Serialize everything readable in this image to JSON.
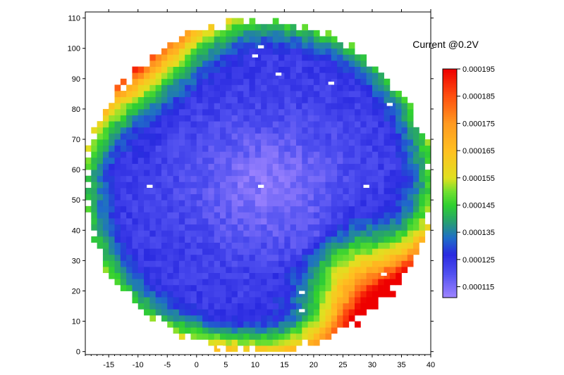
{
  "chart_data": {
    "type": "heatmap",
    "title": "Current @0.2V",
    "xlabel": "",
    "ylabel": "",
    "xlim": [
      -19,
      40
    ],
    "ylim": [
      -1,
      112
    ],
    "x_ticks": [
      -15,
      -10,
      -5,
      0,
      5,
      10,
      15,
      20,
      25,
      30,
      35,
      40
    ],
    "y_ticks": [
      0,
      10,
      20,
      30,
      40,
      50,
      60,
      70,
      80,
      90,
      100,
      110
    ],
    "x_tick_labels": [
      "-15",
      "-10",
      "-5",
      "0",
      "5",
      "10",
      "15",
      "20",
      "25",
      "30",
      "35",
      "40"
    ],
    "y_tick_labels": [
      "0",
      "10",
      "20",
      "30",
      "40",
      "50",
      "60",
      "70",
      "80",
      "90",
      "100",
      "110"
    ],
    "wafer": {
      "center_x": 10.5,
      "center_y": 54.5,
      "radius_x": 29.5,
      "radius_y": 54.5
    },
    "pixel_size": {
      "dx": 1,
      "dy": 2
    },
    "colorscale": {
      "min": 0.000111,
      "max": 0.000195,
      "tick_values": [
        0.000115,
        0.000125,
        0.000135,
        0.000145,
        0.000155,
        0.000165,
        0.000175,
        0.000185,
        0.000195
      ],
      "tick_labels": [
        "0.000115",
        "0.000125",
        "0.000135",
        "0.000145",
        "0.000155",
        "0.000165",
        "0.000175",
        "0.000185",
        "0.000195"
      ],
      "stops": [
        [
          0.000111,
          "#9f85ff"
        ],
        [
          0.00012,
          "#5050f0"
        ],
        [
          0.000127,
          "#2a2ae0"
        ],
        [
          0.000133,
          "#1f6ec8"
        ],
        [
          0.000139,
          "#27a070"
        ],
        [
          0.000145,
          "#2fd030"
        ],
        [
          0.00015,
          "#70e030"
        ],
        [
          0.000155,
          "#e0e020"
        ],
        [
          0.000165,
          "#ffc020"
        ],
        [
          0.000175,
          "#ff9a20"
        ],
        [
          0.000185,
          "#ff5010"
        ],
        [
          0.000195,
          "#ee0000"
        ]
      ]
    },
    "regions": [
      {
        "name": "base",
        "value": 0.000124
      },
      {
        "name": "center-low",
        "center": [
          12,
          55
        ],
        "radius": [
          15,
          24
        ],
        "value_min": 0.000114
      },
      {
        "name": "top-left-high",
        "center": [
          -10,
          102
        ],
        "value": 0.000164
      },
      {
        "name": "left-rim",
        "value": 0.000145
      },
      {
        "name": "bottom-right-high",
        "center": [
          28,
          15
        ],
        "value": 0.000182
      }
    ],
    "missing_dies": [
      {
        "x": 11,
        "y": 100
      },
      {
        "x": 10,
        "y": 97
      },
      {
        "x": 14,
        "y": 91
      },
      {
        "x": 23,
        "y": 88
      },
      {
        "x": 33,
        "y": 81
      },
      {
        "x": -8,
        "y": 54
      },
      {
        "x": 11,
        "y": 54
      },
      {
        "x": 29,
        "y": 54
      },
      {
        "x": 18,
        "y": 19
      },
      {
        "x": 18,
        "y": 13
      },
      {
        "x": 32,
        "y": 25
      },
      {
        "x": 4,
        "y": 1
      }
    ]
  }
}
